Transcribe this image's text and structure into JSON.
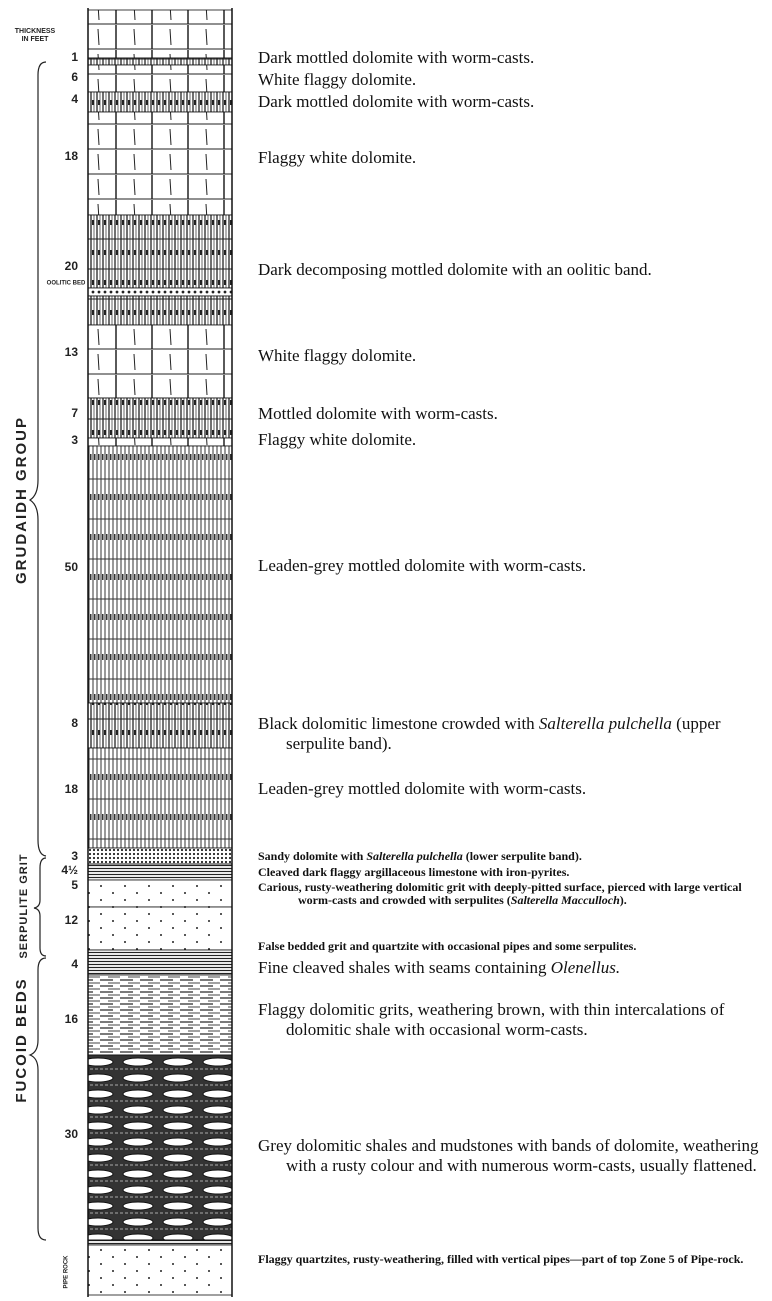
{
  "header": {
    "thickness_label": "THICKNESS IN FEET"
  },
  "groups": [
    {
      "name": "GRUDAIDH GROUP"
    },
    {
      "name": "SERPULITE GRIT"
    },
    {
      "name": "FUCOID BEDS"
    }
  ],
  "layers": [
    {
      "thickness": "1",
      "description": [
        {
          "text": "Dark mottled dolomite with worm-casts."
        }
      ]
    },
    {
      "thickness": "6",
      "description": [
        {
          "text": "White flaggy dolomite."
        }
      ]
    },
    {
      "thickness": "4",
      "description": [
        {
          "text": "Dark mottled dolomite with worm-casts."
        }
      ]
    },
    {
      "thickness": "18",
      "description": [
        {
          "text": "Flaggy white dolomite."
        }
      ]
    },
    {
      "thickness": "20",
      "description": [
        {
          "text": "Dark decomposing mottled dolomite with an oolitic band."
        }
      ]
    },
    {
      "thickness": "OOLITIC BED"
    },
    {
      "thickness": "13",
      "description": [
        {
          "text": "White flaggy dolomite."
        }
      ]
    },
    {
      "thickness": "7",
      "description": [
        {
          "text": "Mottled dolomite with worm-casts."
        }
      ]
    },
    {
      "thickness": "3",
      "description": [
        {
          "text": "Flaggy white dolomite."
        }
      ]
    },
    {
      "thickness": "50",
      "description": [
        {
          "text": "Leaden-grey mottled dolomite with worm-casts."
        }
      ]
    },
    {
      "thickness": "8",
      "description": [
        {
          "text": "Black dolomitic limestone crowded with "
        },
        {
          "text": "Salterella pulchella",
          "italic": true
        },
        {
          "text": " (upper serpulite band)."
        }
      ]
    },
    {
      "thickness": "18",
      "description": [
        {
          "text": "Leaden-grey mottled dolomite with worm-casts."
        }
      ]
    },
    {
      "thickness": "3",
      "small": true,
      "description": [
        {
          "text": "Sandy dolomite with "
        },
        {
          "text": "Salterella pulchella",
          "italic": true
        },
        {
          "text": " (lower serpulite band)."
        }
      ]
    },
    {
      "thickness": "4½",
      "small": true,
      "description": [
        {
          "text": "Cleaved dark flaggy argillaceous limestone with iron-pyrites."
        }
      ]
    },
    {
      "thickness": "5",
      "small": true,
      "description": [
        {
          "text": "Carious, rusty-weathering dolomitic grit with deeply-pitted surface, pierced with large vertical worm-casts and crowded with serpulites ("
        },
        {
          "text": "Salterella Macculloch",
          "italic": true
        },
        {
          "text": ")."
        }
      ]
    },
    {
      "thickness": "12",
      "small": true,
      "description": [
        {
          "text": "False bedded grit and quartzite with occasional pipes and some serpulites."
        }
      ]
    },
    {
      "thickness": "4",
      "description": [
        {
          "text": "Fine cleaved shales with seams containing "
        },
        {
          "text": "Olenellus.",
          "italic": true
        }
      ]
    },
    {
      "thickness": "16",
      "description": [
        {
          "text": "Flaggy dolomitic grits, weathering brown, with thin intercalations of dolomitic shale with occasional worm-casts."
        }
      ]
    },
    {
      "thickness": "30",
      "description": [
        {
          "text": "Grey dolomitic shales and mudstones with bands of dolomite, weathering with a rusty colour and with numerous worm-casts, usually flattened."
        }
      ]
    },
    {
      "thickness": "PIPE ROCK",
      "small": true,
      "description": [
        {
          "text": "Flaggy quartzites, rusty-weathering, filled with vertical pipes—part of top Zone 5 of Pipe-rock."
        }
      ]
    }
  ]
}
